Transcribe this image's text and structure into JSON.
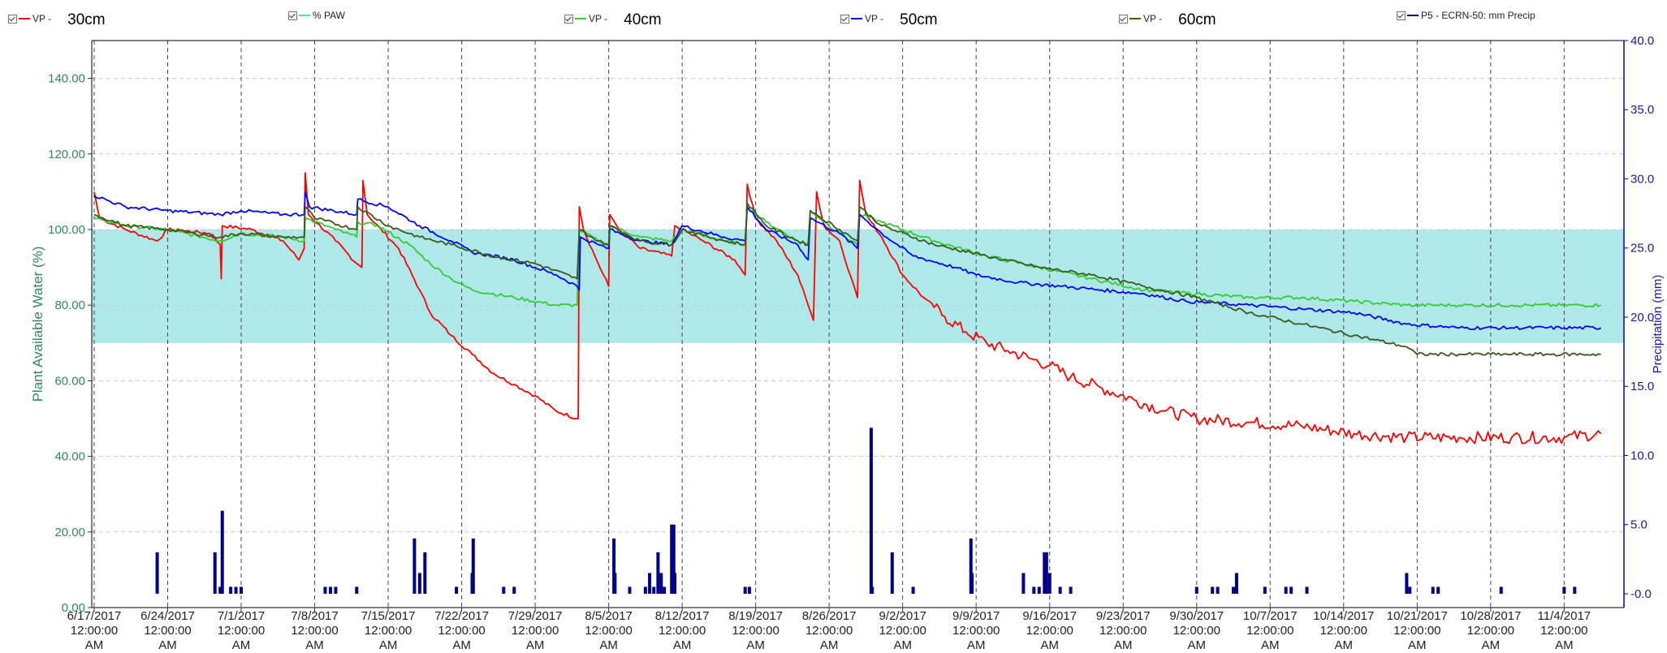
{
  "legend": [
    {
      "id": "vp30",
      "label": "VP -",
      "depth": "30cm",
      "color": "#ff0000"
    },
    {
      "id": "paw",
      "label": "% PAW",
      "depth": "",
      "color": "#40e0d0"
    },
    {
      "id": "vp40",
      "label": "VP -",
      "depth": "40cm",
      "color": "#33cc33"
    },
    {
      "id": "vp50",
      "label": "VP -",
      "depth": "50cm",
      "color": "#0000ff"
    },
    {
      "id": "vp60",
      "label": "VP -",
      "depth": "60cm",
      "color": "#3a5a1a"
    },
    {
      "id": "precip",
      "label": "P5 - ECRN-50: mm Precip",
      "depth": "",
      "color": "#00008b"
    }
  ],
  "chart_data": {
    "type": "line",
    "ylabel": "Plant Available Water (%)",
    "y2label": "Precipitation (mm)",
    "ylim": [
      0,
      150
    ],
    "y2lim": [
      -1,
      40
    ],
    "yticks": [
      "0.00",
      "20.00",
      "40.00",
      "60.00",
      "80.00",
      "100.00",
      "120.00",
      "140.00"
    ],
    "y2ticks": [
      "-0.0",
      "5.0",
      "10.0",
      "15.0",
      "20.0",
      "25.0",
      "30.0",
      "35.0",
      "40.0"
    ],
    "xlim_days": [
      0,
      145
    ],
    "xticks": [
      {
        "day": 0,
        "date": "6/17/2017"
      },
      {
        "day": 7,
        "date": "6/24/2017"
      },
      {
        "day": 14,
        "date": "7/1/2017"
      },
      {
        "day": 21,
        "date": "7/8/2017"
      },
      {
        "day": 28,
        "date": "7/15/2017"
      },
      {
        "day": 35,
        "date": "7/22/2017"
      },
      {
        "day": 42,
        "date": "7/29/2017"
      },
      {
        "day": 49,
        "date": "8/5/2017"
      },
      {
        "day": 56,
        "date": "8/12/2017"
      },
      {
        "day": 63,
        "date": "8/19/2017"
      },
      {
        "day": 70,
        "date": "8/26/2017"
      },
      {
        "day": 77,
        "date": "9/2/2017"
      },
      {
        "day": 84,
        "date": "9/9/2017"
      },
      {
        "day": 91,
        "date": "9/16/2017"
      },
      {
        "day": 98,
        "date": "9/23/2017"
      },
      {
        "day": 105,
        "date": "9/30/2017"
      },
      {
        "day": 112,
        "date": "10/7/2017"
      },
      {
        "day": 119,
        "date": "10/14/2017"
      },
      {
        "day": 126,
        "date": "10/21/2017"
      },
      {
        "day": 133,
        "date": "10/28/2017"
      },
      {
        "day": 140,
        "date": "11/4/2017"
      }
    ],
    "tick_time": "12:00:00",
    "tick_ampm": "AM",
    "band": {
      "low": 70,
      "high": 100,
      "color": "#aee8e8"
    },
    "series": [
      {
        "id": "vp30",
        "color": "#ff0000",
        "points": [
          [
            0,
            110
          ],
          [
            0.5,
            103
          ],
          [
            3,
            100
          ],
          [
            6,
            97
          ],
          [
            7,
            100
          ],
          [
            11,
            99
          ],
          [
            12,
            96
          ],
          [
            12.1,
            87
          ],
          [
            12.2,
            101
          ],
          [
            15,
            100
          ],
          [
            18,
            97
          ],
          [
            19.5,
            92
          ],
          [
            20,
            95
          ],
          [
            20.1,
            115
          ],
          [
            20.4,
            104
          ],
          [
            23,
            97
          ],
          [
            25,
            91
          ],
          [
            25.5,
            90
          ],
          [
            25.6,
            113
          ],
          [
            26,
            104
          ],
          [
            29,
            95
          ],
          [
            31,
            84
          ],
          [
            32,
            78
          ],
          [
            34,
            72
          ],
          [
            36,
            67
          ],
          [
            38,
            62
          ],
          [
            40,
            59
          ],
          [
            42,
            56
          ],
          [
            44,
            52
          ],
          [
            46,
            50
          ],
          [
            46.1,
            50
          ],
          [
            46.2,
            106
          ],
          [
            46.6,
            100
          ],
          [
            48,
            91
          ],
          [
            49,
            85
          ],
          [
            49.1,
            104
          ],
          [
            50,
            100
          ],
          [
            52,
            95
          ],
          [
            55,
            93
          ],
          [
            55.3,
            101
          ],
          [
            58,
            97
          ],
          [
            61,
            92
          ],
          [
            62,
            88
          ],
          [
            62.2,
            112
          ],
          [
            63,
            103
          ],
          [
            65,
            97
          ],
          [
            67,
            88
          ],
          [
            68,
            80
          ],
          [
            68.5,
            76
          ],
          [
            68.8,
            110
          ],
          [
            69.5,
            101
          ],
          [
            71,
            97
          ],
          [
            72,
            88
          ],
          [
            72.7,
            82
          ],
          [
            72.9,
            113
          ],
          [
            73.5,
            104
          ],
          [
            75,
            98
          ],
          [
            77,
            88
          ],
          [
            79,
            82
          ],
          [
            81,
            77
          ],
          [
            83,
            73
          ],
          [
            85,
            70
          ],
          [
            87,
            68
          ],
          [
            89,
            66
          ],
          [
            91,
            64
          ],
          [
            93,
            61
          ],
          [
            96,
            58
          ],
          [
            99,
            55
          ],
          [
            102,
            52
          ],
          [
            105,
            50
          ],
          [
            110,
            49
          ],
          [
            115,
            48
          ],
          [
            120,
            46
          ],
          [
            125,
            45
          ],
          [
            130,
            45
          ],
          [
            135,
            45
          ],
          [
            140,
            45
          ],
          [
            143.5,
            46
          ]
        ]
      },
      {
        "id": "vp40",
        "color": "#33cc33",
        "points": [
          [
            0,
            103
          ],
          [
            3,
            101
          ],
          [
            7,
            100
          ],
          [
            12,
            97
          ],
          [
            14,
            99
          ],
          [
            18,
            98
          ],
          [
            20,
            97
          ],
          [
            20.1,
            103
          ],
          [
            23,
            100
          ],
          [
            25,
            98
          ],
          [
            25.1,
            102
          ],
          [
            27,
            101
          ],
          [
            30,
            96
          ],
          [
            32,
            91
          ],
          [
            34,
            87
          ],
          [
            36,
            84
          ],
          [
            40,
            82
          ],
          [
            44,
            80
          ],
          [
            46,
            80
          ],
          [
            46.2,
            100
          ],
          [
            48,
            97
          ],
          [
            49,
            96
          ],
          [
            49.1,
            101
          ],
          [
            52,
            98
          ],
          [
            55,
            97
          ],
          [
            56,
            100
          ],
          [
            60,
            97
          ],
          [
            62,
            96
          ],
          [
            62.2,
            106
          ],
          [
            64,
            102
          ],
          [
            67,
            97
          ],
          [
            68,
            96
          ],
          [
            68.2,
            105
          ],
          [
            71,
            99
          ],
          [
            72.7,
            96
          ],
          [
            72.9,
            104
          ],
          [
            75,
            102
          ],
          [
            80,
            97
          ],
          [
            85,
            93
          ],
          [
            90,
            90
          ],
          [
            95,
            87
          ],
          [
            100,
            84
          ],
          [
            105,
            83
          ],
          [
            110,
            82
          ],
          [
            115,
            82
          ],
          [
            120,
            81
          ],
          [
            125,
            80
          ],
          [
            130,
            80
          ],
          [
            135,
            80
          ],
          [
            143.5,
            80
          ]
        ]
      },
      {
        "id": "vp50",
        "color": "#0000ff",
        "points": [
          [
            0,
            109
          ],
          [
            3,
            106
          ],
          [
            7,
            105
          ],
          [
            12,
            104
          ],
          [
            14,
            105
          ],
          [
            18,
            104
          ],
          [
            20,
            104
          ],
          [
            20.1,
            110
          ],
          [
            20.5,
            106
          ],
          [
            25,
            104
          ],
          [
            25.1,
            108
          ],
          [
            28,
            106
          ],
          [
            31,
            101
          ],
          [
            34,
            97
          ],
          [
            36,
            94
          ],
          [
            40,
            92
          ],
          [
            44,
            88
          ],
          [
            46,
            85
          ],
          [
            46.2,
            84
          ],
          [
            46.3,
            98
          ],
          [
            48,
            96
          ],
          [
            49,
            95
          ],
          [
            49.1,
            100
          ],
          [
            52,
            97
          ],
          [
            55,
            96
          ],
          [
            56,
            101
          ],
          [
            60,
            98
          ],
          [
            62,
            97
          ],
          [
            62.2,
            106
          ],
          [
            64,
            100
          ],
          [
            67,
            96
          ],
          [
            68,
            92
          ],
          [
            68.2,
            103
          ],
          [
            71,
            99
          ],
          [
            72.7,
            95
          ],
          [
            72.9,
            104
          ],
          [
            75,
            99
          ],
          [
            78,
            93
          ],
          [
            82,
            90
          ],
          [
            84,
            88
          ],
          [
            88,
            86
          ],
          [
            92,
            85
          ],
          [
            96,
            84
          ],
          [
            100,
            83
          ],
          [
            104,
            81
          ],
          [
            110,
            80
          ],
          [
            115,
            79
          ],
          [
            120,
            78
          ],
          [
            125,
            75
          ],
          [
            130,
            74
          ],
          [
            135,
            74
          ],
          [
            140,
            74
          ],
          [
            143.5,
            74
          ]
        ]
      },
      {
        "id": "vp60",
        "color": "#3a5a1a",
        "points": [
          [
            0,
            104
          ],
          [
            3,
            101
          ],
          [
            7,
            100
          ],
          [
            12,
            98
          ],
          [
            14,
            99
          ],
          [
            18,
            98
          ],
          [
            20,
            98
          ],
          [
            20.1,
            106
          ],
          [
            21,
            103
          ],
          [
            25,
            100
          ],
          [
            25.1,
            106
          ],
          [
            28,
            101
          ],
          [
            31,
            98
          ],
          [
            34,
            96
          ],
          [
            38,
            93
          ],
          [
            42,
            91
          ],
          [
            46,
            87
          ],
          [
            46.2,
            100
          ],
          [
            48,
            97
          ],
          [
            49,
            96
          ],
          [
            49.1,
            101
          ],
          [
            52,
            97
          ],
          [
            55,
            96
          ],
          [
            56,
            100
          ],
          [
            60,
            97
          ],
          [
            62,
            96
          ],
          [
            62.2,
            107
          ],
          [
            64,
            101
          ],
          [
            67,
            97
          ],
          [
            68,
            96
          ],
          [
            68.2,
            105
          ],
          [
            71,
            100
          ],
          [
            72.7,
            97
          ],
          [
            72.9,
            106
          ],
          [
            75,
            101
          ],
          [
            80,
            96
          ],
          [
            85,
            93
          ],
          [
            90,
            90
          ],
          [
            95,
            88
          ],
          [
            100,
            85
          ],
          [
            105,
            82
          ],
          [
            110,
            78
          ],
          [
            115,
            75
          ],
          [
            120,
            72
          ],
          [
            125,
            69
          ],
          [
            126,
            67
          ],
          [
            130,
            67
          ],
          [
            135,
            67
          ],
          [
            143.5,
            67
          ]
        ]
      }
    ],
    "precip": [
      [
        6,
        3
      ],
      [
        11.5,
        3
      ],
      [
        12,
        0.5
      ],
      [
        12.2,
        6
      ],
      [
        13,
        0.5
      ],
      [
        13.5,
        0.5
      ],
      [
        14,
        0.5
      ],
      [
        22,
        0.5
      ],
      [
        22.5,
        0.5
      ],
      [
        23,
        0.5
      ],
      [
        25,
        0.5
      ],
      [
        30.5,
        4
      ],
      [
        31,
        1.5
      ],
      [
        31.5,
        3
      ],
      [
        34.5,
        0.5
      ],
      [
        36,
        1.5
      ],
      [
        36.1,
        4
      ],
      [
        39,
        0.5
      ],
      [
        40,
        0.5
      ],
      [
        49.5,
        4
      ],
      [
        49.6,
        1.5
      ],
      [
        51,
        0.5
      ],
      [
        52.5,
        0.5
      ],
      [
        52.9,
        1.5
      ],
      [
        53.3,
        0.5
      ],
      [
        53.7,
        3
      ],
      [
        54,
        1.5
      ],
      [
        54.3,
        0.5
      ],
      [
        55,
        5
      ],
      [
        55.2,
        5
      ],
      [
        55.3,
        1.5
      ],
      [
        62,
        0.5
      ],
      [
        62.4,
        0.5
      ],
      [
        74,
        12
      ],
      [
        74.1,
        0.5
      ],
      [
        76,
        3
      ],
      [
        78,
        0.5
      ],
      [
        83.5,
        4
      ],
      [
        83.6,
        1.5
      ],
      [
        88.5,
        1.5
      ],
      [
        89.5,
        0.5
      ],
      [
        90,
        0.5
      ],
      [
        90.5,
        3
      ],
      [
        90.7,
        3
      ],
      [
        91,
        1.5
      ],
      [
        92,
        0.5
      ],
      [
        93,
        0.5
      ],
      [
        105,
        0.5
      ],
      [
        106.5,
        0.5
      ],
      [
        107,
        0.5
      ],
      [
        108.5,
        0.5
      ],
      [
        108.8,
        1.5
      ],
      [
        111.5,
        0.5
      ],
      [
        113.5,
        0.5
      ],
      [
        114,
        0.5
      ],
      [
        115.5,
        0.5
      ],
      [
        125,
        1.5
      ],
      [
        125.3,
        0.5
      ],
      [
        127.5,
        0.5
      ],
      [
        128,
        0.5
      ],
      [
        134,
        0.5
      ],
      [
        140,
        0.5
      ],
      [
        141,
        0.5
      ]
    ]
  }
}
